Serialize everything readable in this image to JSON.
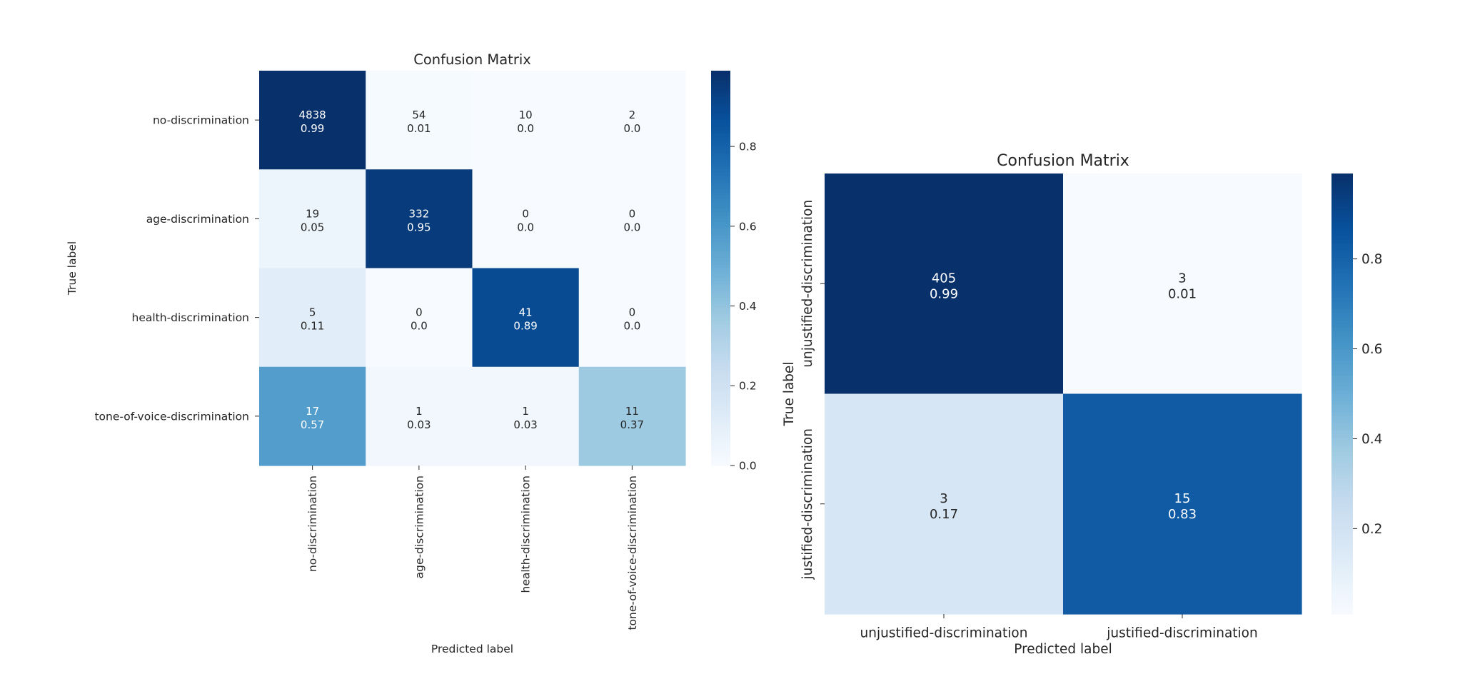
{
  "colors": {
    "colormap": "Blues",
    "low": "#f7fbff",
    "high": "#08306b",
    "text_dark": "#262626",
    "text_light": "#ffffff"
  },
  "chart_data": [
    {
      "type": "heatmap",
      "title": "Confusion Matrix",
      "xlabel": "Predicted label",
      "ylabel": "True label",
      "row_labels": [
        "no-discrimination",
        "age-discrimination",
        "health-discrimination",
        "tone-of-voice-discrimination"
      ],
      "col_labels": [
        "no-discrimination",
        "age-discrimination",
        "health-discrimination",
        "tone-of-voice-discrimination"
      ],
      "counts": [
        [
          4838,
          54,
          10,
          2
        ],
        [
          19,
          332,
          0,
          0
        ],
        [
          5,
          0,
          41,
          0
        ],
        [
          17,
          1,
          1,
          11
        ]
      ],
      "normalized": [
        [
          "0.99",
          "0.01",
          "0.0",
          "0.0"
        ],
        [
          "0.05",
          "0.95",
          "0.0",
          "0.0"
        ],
        [
          "0.11",
          "0.0",
          "0.89",
          "0.0"
        ],
        [
          "0.57",
          "0.03",
          "0.03",
          "0.37"
        ]
      ],
      "colorbar": {
        "range": [
          0.0,
          0.99
        ],
        "ticks": [
          "0.0",
          "0.2",
          "0.4",
          "0.6",
          "0.8"
        ]
      },
      "col_labels_rotated": true
    },
    {
      "type": "heatmap",
      "title": "Confusion Matrix",
      "xlabel": "Predicted label",
      "ylabel": "True label",
      "row_labels": [
        "unjustified-discrimination",
        "justified-discrimination"
      ],
      "col_labels": [
        "unjustified-discrimination",
        "justified-discrimination"
      ],
      "counts": [
        [
          405,
          3
        ],
        [
          3,
          15
        ]
      ],
      "normalized": [
        [
          "0.99",
          "0.01"
        ],
        [
          "0.17",
          "0.83"
        ]
      ],
      "colorbar": {
        "range": [
          0.01,
          0.99
        ],
        "ticks": [
          "0.2",
          "0.4",
          "0.6",
          "0.8"
        ]
      },
      "col_labels_rotated": false
    }
  ]
}
